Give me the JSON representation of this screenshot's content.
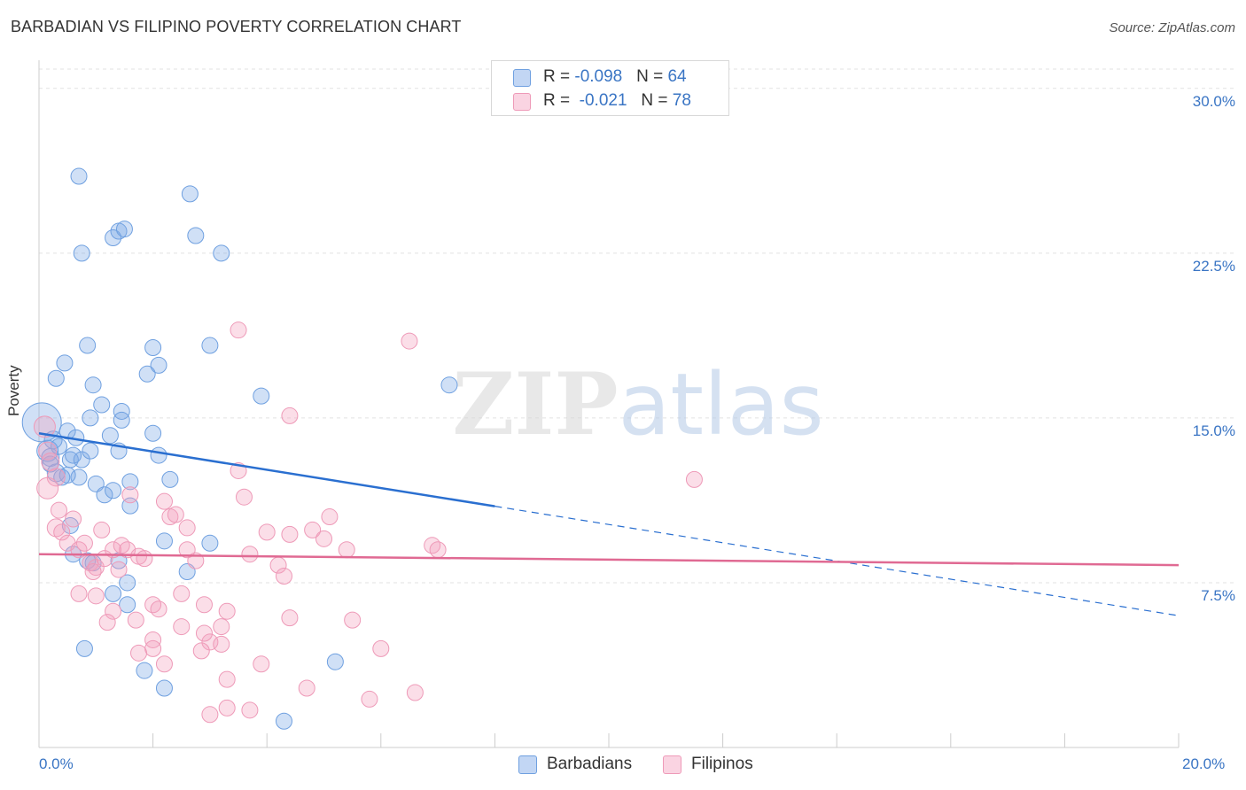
{
  "chart_data": {
    "type": "scatter",
    "title": "BARBADIAN VS FILIPINO POVERTY CORRELATION CHART",
    "source": "Source: ZipAtlas.com",
    "xlabel": "",
    "ylabel": "Poverty",
    "xlim": [
      0,
      20
    ],
    "ylim": [
      0,
      31
    ],
    "x_tick_labels": [
      "0.0%",
      "20.0%"
    ],
    "y_ticks": [
      7.5,
      15.0,
      22.5,
      30.0
    ],
    "y_tick_labels": [
      "7.5%",
      "15.0%",
      "22.5%",
      "30.0%"
    ],
    "grid": true,
    "watermark": "ZIPatlas",
    "legend_position": "top-center",
    "series": [
      {
        "name": "Barbadians",
        "color": "#6fa0e0",
        "fill": "rgba(120,165,230,0.35)",
        "line_color": "#2a6fd0",
        "R": "-0.098",
        "N": "64",
        "trend": {
          "x0": 0,
          "y0": 14.3,
          "x_solid_end": 8.0,
          "x1": 20,
          "y1": 6.0
        },
        "points": [
          [
            0.05,
            14.8,
            22
          ],
          [
            0.15,
            13.5,
            12
          ],
          [
            0.2,
            13.2,
            10
          ],
          [
            0.25,
            14.0,
            10
          ],
          [
            0.3,
            12.5,
            10
          ],
          [
            0.35,
            13.7,
            9
          ],
          [
            0.3,
            16.8,
            9
          ],
          [
            0.45,
            17.5,
            9
          ],
          [
            0.5,
            14.4,
            9
          ],
          [
            0.55,
            13.1,
            9
          ],
          [
            0.65,
            14.1,
            9
          ],
          [
            0.7,
            12.3,
            9
          ],
          [
            0.75,
            13.1,
            9
          ],
          [
            0.7,
            26.0,
            9
          ],
          [
            0.75,
            22.5,
            9
          ],
          [
            0.85,
            18.3,
            9
          ],
          [
            0.9,
            13.5,
            9
          ],
          [
            0.9,
            15.0,
            9
          ],
          [
            0.95,
            16.5,
            9
          ],
          [
            1.0,
            12.0,
            9
          ],
          [
            1.1,
            15.6,
            9
          ],
          [
            1.15,
            11.5,
            9
          ],
          [
            1.3,
            11.7,
            9
          ],
          [
            1.4,
            13.5,
            9
          ],
          [
            1.4,
            23.5,
            9
          ],
          [
            1.3,
            23.2,
            9
          ],
          [
            1.5,
            23.6,
            9
          ],
          [
            1.45,
            15.3,
            9
          ],
          [
            1.45,
            14.9,
            9
          ],
          [
            1.25,
            14.2,
            9
          ],
          [
            1.6,
            11.0,
            9
          ],
          [
            1.9,
            17.0,
            9
          ],
          [
            2.0,
            18.2,
            9
          ],
          [
            2.1,
            17.4,
            9
          ],
          [
            2.0,
            14.3,
            9
          ],
          [
            2.1,
            13.3,
            9
          ],
          [
            2.3,
            12.2,
            9
          ],
          [
            2.65,
            25.2,
            9
          ],
          [
            2.75,
            23.3,
            9
          ],
          [
            3.2,
            22.5,
            9
          ],
          [
            3.0,
            18.3,
            9
          ],
          [
            3.9,
            16.0,
            9
          ],
          [
            7.2,
            16.5,
            9
          ],
          [
            0.55,
            10.1,
            9
          ],
          [
            0.6,
            8.8,
            9
          ],
          [
            0.85,
            8.5,
            9
          ],
          [
            0.95,
            8.4,
            9
          ],
          [
            1.4,
            8.5,
            9
          ],
          [
            1.55,
            7.5,
            9
          ],
          [
            1.3,
            7.0,
            9
          ],
          [
            1.55,
            6.5,
            9
          ],
          [
            2.2,
            9.4,
            9
          ],
          [
            3.0,
            9.3,
            9
          ],
          [
            2.6,
            8.0,
            9
          ],
          [
            0.8,
            4.5,
            9
          ],
          [
            1.85,
            3.5,
            9
          ],
          [
            2.2,
            2.7,
            9
          ],
          [
            5.2,
            3.9,
            9
          ],
          [
            4.3,
            1.2,
            9
          ],
          [
            0.4,
            12.3,
            9
          ],
          [
            0.6,
            13.3,
            9
          ],
          [
            1.6,
            12.1,
            9
          ],
          [
            0.5,
            12.4,
            9
          ],
          [
            0.2,
            12.9,
            9
          ]
        ]
      },
      {
        "name": "Filipinos",
        "color": "#ee9ab8",
        "fill": "rgba(244,160,190,0.35)",
        "line_color": "#e06a93",
        "R": "-0.021",
        "N": "78",
        "trend": {
          "x0": 0,
          "y0": 8.8,
          "x1": 20,
          "y1": 8.3
        },
        "points": [
          [
            0.1,
            14.6,
            12
          ],
          [
            0.15,
            13.5,
            10
          ],
          [
            0.2,
            13.0,
            10
          ],
          [
            0.3,
            12.3,
            10
          ],
          [
            0.15,
            11.8,
            12
          ],
          [
            0.35,
            10.8,
            9
          ],
          [
            0.3,
            10.0,
            10
          ],
          [
            0.4,
            9.8,
            9
          ],
          [
            0.5,
            9.3,
            9
          ],
          [
            0.6,
            10.4,
            9
          ],
          [
            0.7,
            9.0,
            9
          ],
          [
            0.8,
            9.3,
            9
          ],
          [
            0.9,
            8.4,
            9
          ],
          [
            1.0,
            8.2,
            9
          ],
          [
            1.1,
            9.9,
            9
          ],
          [
            1.15,
            8.6,
            9
          ],
          [
            1.3,
            9.0,
            9
          ],
          [
            1.45,
            9.2,
            9
          ],
          [
            1.55,
            9.0,
            9
          ],
          [
            1.6,
            11.5,
            9
          ],
          [
            1.75,
            8.7,
            9
          ],
          [
            2.2,
            11.2,
            9
          ],
          [
            2.3,
            10.5,
            9
          ],
          [
            2.4,
            10.6,
            9
          ],
          [
            2.6,
            10.0,
            9
          ],
          [
            2.6,
            9.0,
            9
          ],
          [
            2.75,
            8.5,
            9
          ],
          [
            3.6,
            11.4,
            9
          ],
          [
            3.5,
            12.6,
            9
          ],
          [
            3.7,
            8.8,
            9
          ],
          [
            4.0,
            9.8,
            9
          ],
          [
            4.4,
            9.7,
            9
          ],
          [
            4.8,
            9.9,
            9
          ],
          [
            5.0,
            9.5,
            9
          ],
          [
            5.1,
            10.5,
            9
          ],
          [
            5.4,
            9.0,
            9
          ],
          [
            4.2,
            8.3,
            9
          ],
          [
            4.3,
            7.8,
            9
          ],
          [
            3.5,
            19.0,
            9
          ],
          [
            6.5,
            18.5,
            9
          ],
          [
            4.4,
            15.1,
            9
          ],
          [
            6.9,
            9.2,
            9
          ],
          [
            7.0,
            9.0,
            9
          ],
          [
            11.5,
            12.2,
            9
          ],
          [
            0.7,
            7.0,
            9
          ],
          [
            1.0,
            6.9,
            9
          ],
          [
            1.3,
            6.2,
            9
          ],
          [
            1.2,
            5.7,
            9
          ],
          [
            1.7,
            5.8,
            9
          ],
          [
            2.0,
            6.5,
            9
          ],
          [
            2.1,
            6.3,
            9
          ],
          [
            2.5,
            5.5,
            9
          ],
          [
            2.5,
            7.0,
            9
          ],
          [
            2.9,
            6.5,
            9
          ],
          [
            3.0,
            4.8,
            9
          ],
          [
            3.3,
            6.2,
            9
          ],
          [
            3.2,
            5.5,
            9
          ],
          [
            2.9,
            5.2,
            9
          ],
          [
            2.0,
            4.9,
            9
          ],
          [
            2.0,
            4.5,
            9
          ],
          [
            1.75,
            4.3,
            9
          ],
          [
            2.2,
            3.8,
            9
          ],
          [
            3.2,
            4.7,
            9
          ],
          [
            3.3,
            3.1,
            9
          ],
          [
            3.3,
            1.8,
            9
          ],
          [
            3.0,
            1.5,
            9
          ],
          [
            3.7,
            1.7,
            9
          ],
          [
            3.9,
            3.8,
            9
          ],
          [
            4.4,
            5.9,
            9
          ],
          [
            4.7,
            2.7,
            9
          ],
          [
            5.5,
            5.8,
            9
          ],
          [
            5.8,
            2.2,
            9
          ],
          [
            6.0,
            4.5,
            9
          ],
          [
            6.6,
            2.5,
            9
          ],
          [
            1.4,
            8.1,
            9
          ],
          [
            0.95,
            8.0,
            9
          ],
          [
            1.85,
            8.6,
            9
          ],
          [
            2.85,
            4.4,
            9
          ]
        ]
      }
    ]
  }
}
